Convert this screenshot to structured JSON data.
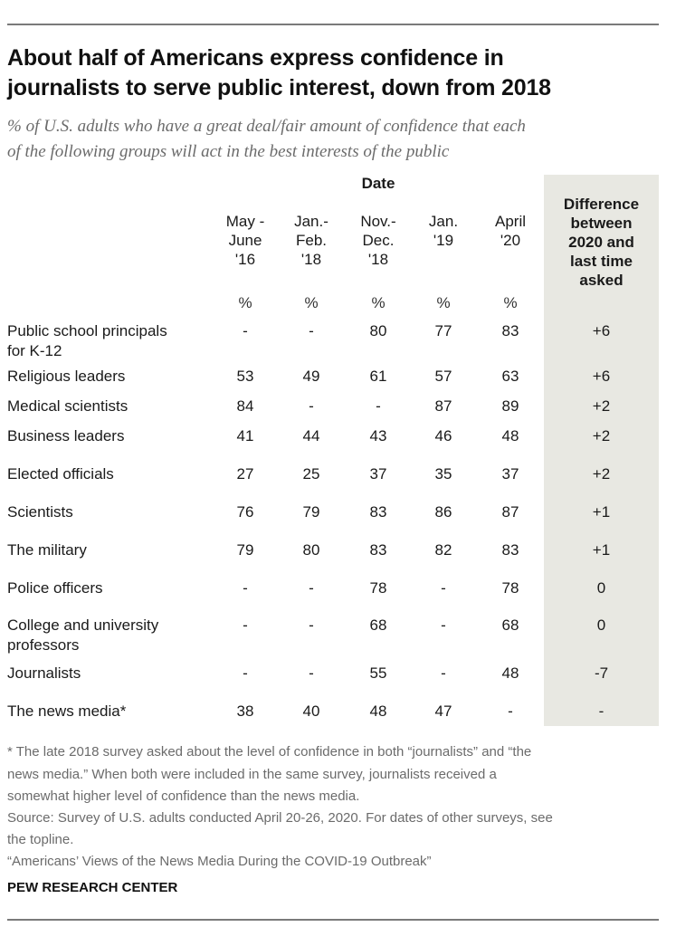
{
  "header": {
    "title_line1": "About half of Americans express confidence in",
    "title_line2": "journalists to serve public interest, down from 2018",
    "subtitle_line1": "% of U.S. adults who have a great deal/fair amount of confidence that each",
    "subtitle_line2": "of the following groups will act in the best interests of the public"
  },
  "chart_data": {
    "type": "table",
    "title": "About half of Americans express confidence in journalists to serve public interest, down from 2018",
    "subtitle": "% of U.S. adults who have a great deal/fair amount of confidence that each of the following groups will act in the best interests of the public",
    "group_header": "Date",
    "columns": [
      "May -\nJune\n'16",
      "Jan.-\nFeb.\n'18",
      "Nov.-\nDec.\n'18",
      "Jan.\n'19",
      "April\n'20"
    ],
    "unit_row": [
      "%",
      "%",
      "%",
      "%",
      "%"
    ],
    "diff_header": "Difference\nbetween\n2020 and\nlast time\nasked",
    "rows": [
      {
        "label": "Public school principals\nfor K-12",
        "values": [
          "-",
          "-",
          "80",
          "77",
          "83"
        ],
        "diff": "+6"
      },
      {
        "label": "Religious leaders",
        "values": [
          "53",
          "49",
          "61",
          "57",
          "63"
        ],
        "diff": "+6"
      },
      {
        "label": "Medical scientists",
        "values": [
          "84",
          "-",
          "-",
          "87",
          "89"
        ],
        "diff": "+2"
      },
      {
        "label": "Business leaders",
        "values": [
          "41",
          "44",
          "43",
          "46",
          "48"
        ],
        "diff": "+2"
      },
      {
        "label": "Elected officials",
        "values": [
          "27",
          "25",
          "37",
          "35",
          "37"
        ],
        "diff": "+2"
      },
      {
        "label": "Scientists",
        "values": [
          "76",
          "79",
          "83",
          "86",
          "87"
        ],
        "diff": "+1"
      },
      {
        "label": "The military",
        "values": [
          "79",
          "80",
          "83",
          "82",
          "83"
        ],
        "diff": "+1"
      },
      {
        "label": "Police officers",
        "values": [
          "-",
          "-",
          "78",
          "-",
          "78"
        ],
        "diff": "0"
      },
      {
        "label": "College and university\nprofessors",
        "values": [
          "-",
          "-",
          "68",
          "-",
          "68"
        ],
        "diff": "0"
      },
      {
        "label": "Journalists",
        "values": [
          "-",
          "-",
          "55",
          "-",
          "48"
        ],
        "diff": "-7"
      },
      {
        "label": "The news media*",
        "values": [
          "38",
          "40",
          "48",
          "47",
          "-"
        ],
        "diff": "-"
      }
    ]
  },
  "notes": {
    "line1": "* The late 2018 survey asked about the level of confidence in both “journalists” and “the",
    "line2": "news media.” When both were included in the same survey, journalists received a",
    "line3": "somewhat higher level of confidence than the news media.",
    "line4": "Source: Survey of U.S. adults conducted April 20-26, 2020. For dates of other surveys, see",
    "line5": "the topline.",
    "line6": "“Americans’ Views of the News Media During the COVID-19 Outbreak”"
  },
  "brand": "PEW RESEARCH CENTER"
}
